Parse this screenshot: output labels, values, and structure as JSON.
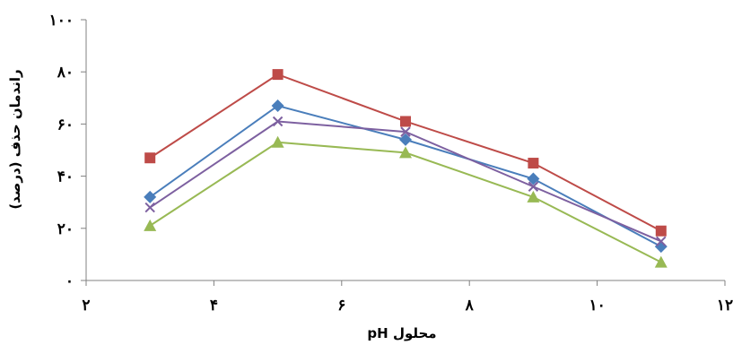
{
  "chart_data": {
    "type": "line",
    "title": "",
    "xlabel": "pH محلول",
    "ylabel": "راندمان حذف (درصد)",
    "xlim": [
      2,
      12
    ],
    "ylim": [
      0,
      100
    ],
    "x_ticks": [
      2,
      4,
      6,
      8,
      10,
      12
    ],
    "y_ticks": [
      0,
      20,
      40,
      60,
      80,
      100
    ],
    "x_tick_labels": [
      "۲",
      "۴",
      "۶",
      "۸",
      "۱۰",
      "۱۲"
    ],
    "y_tick_labels": [
      "۰",
      "۲۰",
      "۴۰",
      "۶۰",
      "۸۰",
      "۱۰۰"
    ],
    "grid": false,
    "legend": "none",
    "x": [
      3,
      5,
      7,
      9,
      11
    ],
    "series": [
      {
        "values": [
          32,
          67,
          54,
          39,
          13
        ],
        "color": "#4a7ebb",
        "marker": "diamond"
      },
      {
        "values": [
          47,
          79,
          61,
          45,
          19
        ],
        "color": "#be4b48",
        "marker": "square"
      },
      {
        "values": [
          21,
          53,
          49,
          32,
          7
        ],
        "color": "#98b954",
        "marker": "triangle"
      },
      {
        "values": [
          28,
          61,
          57,
          36,
          15
        ],
        "color": "#7d60a0",
        "marker": "x"
      }
    ]
  }
}
